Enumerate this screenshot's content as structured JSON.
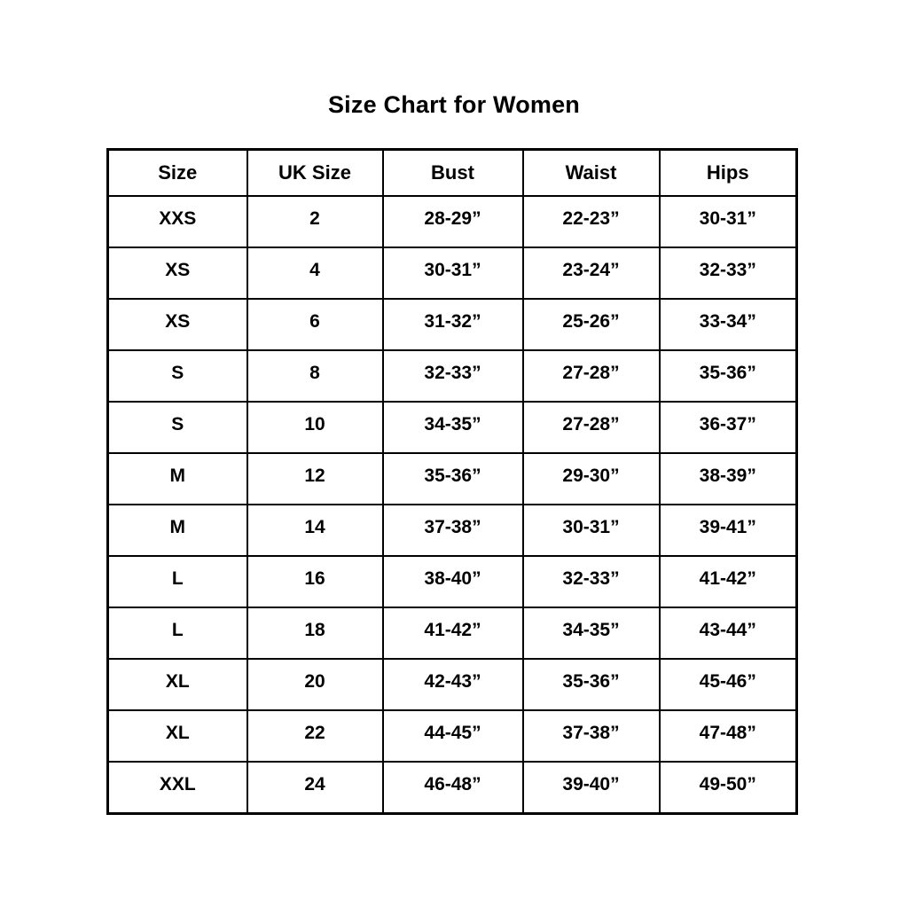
{
  "page_title": "Size Chart for Women",
  "colors": {
    "background": "#ffffff",
    "border": "#000000",
    "text": "#000000"
  },
  "chart_data": {
    "type": "table",
    "title": "Size Chart for Women",
    "columns": [
      "Size",
      "UK Size",
      "Bust",
      "Waist",
      "Hips"
    ],
    "rows": [
      [
        "XXS",
        "2",
        "28-29”",
        "22-23”",
        "30-31”"
      ],
      [
        "XS",
        "4",
        "30-31”",
        "23-24”",
        "32-33”"
      ],
      [
        "XS",
        "6",
        "31-32”",
        "25-26”",
        "33-34”"
      ],
      [
        "S",
        "8",
        "32-33”",
        "27-28”",
        "35-36”"
      ],
      [
        "S",
        "10",
        "34-35”",
        "27-28”",
        "36-37”"
      ],
      [
        "M",
        "12",
        "35-36”",
        "29-30”",
        "38-39”"
      ],
      [
        "M",
        "14",
        "37-38”",
        "30-31”",
        "39-41”"
      ],
      [
        "L",
        "16",
        "38-40”",
        "32-33”",
        "41-42”"
      ],
      [
        "L",
        "18",
        "41-42”",
        "34-35”",
        "43-44”"
      ],
      [
        "XL",
        "20",
        "42-43”",
        "35-36”",
        "45-46”"
      ],
      [
        "XL",
        "22",
        "44-45”",
        "37-38”",
        "47-48”"
      ],
      [
        "XXL",
        "24",
        "46-48”",
        "39-40”",
        "49-50”"
      ]
    ]
  }
}
